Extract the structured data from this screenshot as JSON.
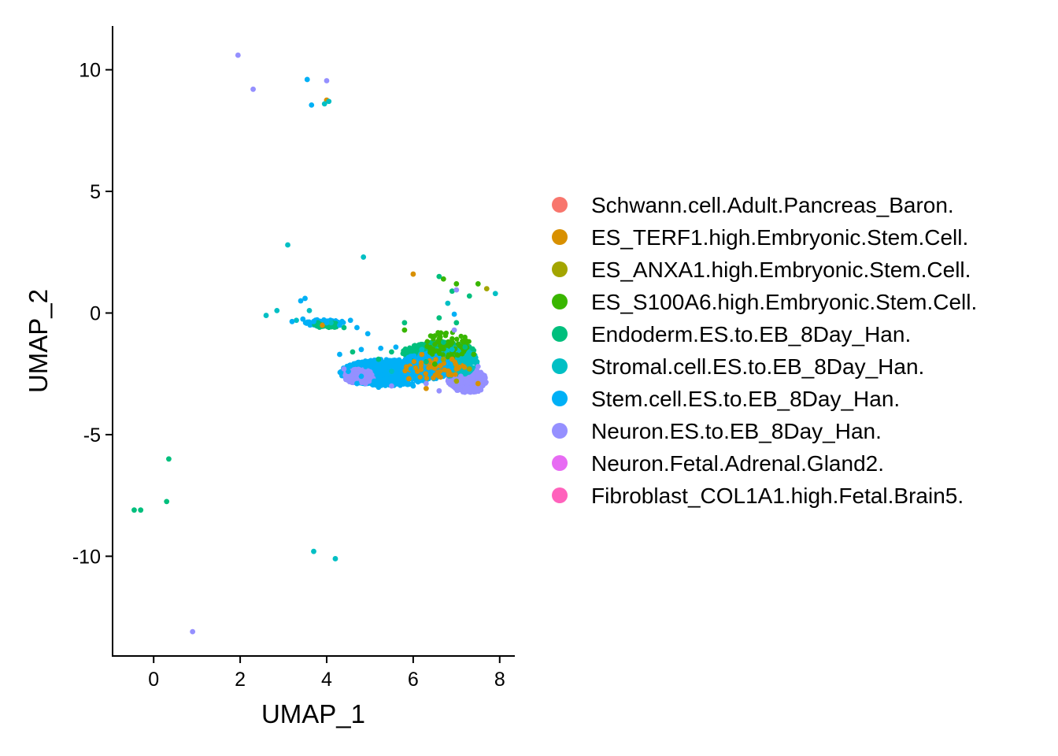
{
  "chart_data": {
    "type": "scatter",
    "title": "",
    "xlabel": "UMAP_1",
    "ylabel": "UMAP_2",
    "xlim": [
      -0.95,
      8.35
    ],
    "ylim": [
      -14.1,
      11.8
    ],
    "xticks": [
      0,
      2,
      4,
      6,
      8
    ],
    "xtick_labels": [
      "0",
      "2",
      "4",
      "6",
      "8"
    ],
    "yticks": [
      10,
      5,
      0,
      -5,
      -10
    ],
    "ytick_labels": [
      "10",
      "5",
      "0",
      "-5",
      "-10"
    ],
    "grid": false,
    "legend_position": "right",
    "series": [
      {
        "name": "Schwann.cell.Adult.Pancreas_Baron.",
        "color": "#F8766D",
        "points": []
      },
      {
        "name": "ES_TERF1.high.Embryonic.Stem.Cell.",
        "color": "#D89000",
        "points": [
          [
            6.0,
            1.6
          ],
          [
            4.0,
            8.75
          ],
          [
            3.9,
            -0.5
          ],
          [
            6.1,
            -2.4
          ],
          [
            6.4,
            -2.2
          ],
          [
            7.0,
            -2.3
          ],
          [
            6.3,
            -3.1
          ],
          [
            6.9,
            -1.9
          ],
          [
            5.9,
            -2.7
          ],
          [
            7.5,
            -2.9
          ],
          [
            6.6,
            -2.6
          ],
          [
            6.2,
            -1.7
          ]
        ]
      },
      {
        "name": "ES_ANXA1.high.Embryonic.Stem.Cell.",
        "color": "#A3A500",
        "points": [
          [
            7.7,
            1.0
          ],
          [
            7.3,
            -2.3
          ],
          [
            6.7,
            -1.9
          ],
          [
            7.0,
            -2.8
          ]
        ]
      },
      {
        "name": "ES_S100A6.high.Embryonic.Stem.Cell.",
        "color": "#39B600",
        "points": [
          [
            6.7,
            1.4
          ],
          [
            7.0,
            1.2
          ],
          [
            7.5,
            1.2
          ],
          [
            5.8,
            -0.7
          ],
          [
            6.9,
            -1.2
          ],
          [
            6.5,
            -2.1
          ],
          [
            7.4,
            -1.7
          ]
        ]
      },
      {
        "name": "Endoderm.ES.to.EB_8Day_Han.",
        "color": "#00BF7D",
        "points": [
          [
            0.35,
            -6.0
          ],
          [
            0.3,
            -7.75
          ],
          [
            -0.45,
            -8.1
          ],
          [
            -0.3,
            -8.1
          ],
          [
            6.6,
            1.5
          ],
          [
            6.9,
            0.9
          ],
          [
            7.3,
            0.7
          ],
          [
            5.8,
            -0.4
          ],
          [
            6.6,
            -0.2
          ],
          [
            3.8,
            -0.4
          ],
          [
            4.4,
            -0.6
          ],
          [
            5.5,
            -1.6
          ],
          [
            6.0,
            -1.5
          ],
          [
            6.7,
            -1.2
          ],
          [
            7.2,
            -1.4
          ],
          [
            6.3,
            -2.0
          ],
          [
            5.2,
            -1.9
          ],
          [
            4.6,
            -1.6
          ],
          [
            7.0,
            -0.4
          ]
        ]
      },
      {
        "name": "Stromal.cell.ES.to.EB_8Day_Han.",
        "color": "#00BFC4",
        "points": [
          [
            3.7,
            -9.8
          ],
          [
            4.2,
            -10.1
          ],
          [
            3.95,
            8.6
          ],
          [
            4.05,
            8.7
          ],
          [
            4.85,
            2.3
          ],
          [
            3.1,
            2.8
          ],
          [
            2.6,
            -0.1
          ],
          [
            2.85,
            0.1
          ],
          [
            3.3,
            -0.3
          ],
          [
            3.6,
            0.1
          ],
          [
            4.1,
            -0.4
          ],
          [
            6.9,
            -1.5
          ],
          [
            7.2,
            -2.0
          ],
          [
            6.2,
            -1.5
          ],
          [
            5.5,
            -2.4
          ],
          [
            6.8,
            0.4
          ],
          [
            7.9,
            0.8
          ]
        ]
      },
      {
        "name": "Stem.cell.ES.to.EB_8Day_Han.",
        "color": "#00B0F6",
        "points": [
          [
            3.55,
            9.6
          ],
          [
            3.65,
            8.55
          ],
          [
            3.4,
            0.5
          ],
          [
            3.5,
            0.6
          ],
          [
            3.2,
            -0.35
          ],
          [
            3.45,
            -0.25
          ],
          [
            3.7,
            -0.35
          ],
          [
            4.0,
            -0.4
          ],
          [
            4.3,
            -0.5
          ],
          [
            4.55,
            -0.3
          ],
          [
            4.7,
            -0.6
          ],
          [
            4.95,
            -0.85
          ],
          [
            4.8,
            -1.5
          ],
          [
            5.25,
            -1.45
          ],
          [
            5.6,
            -1.4
          ],
          [
            4.3,
            -1.7
          ],
          [
            6.95,
            -0.05
          ],
          [
            4.5,
            -2.4
          ],
          [
            4.8,
            -2.6
          ],
          [
            5.1,
            -2.8
          ],
          [
            5.4,
            -2.5
          ],
          [
            5.7,
            -2.9
          ],
          [
            6.0,
            -3.0
          ],
          [
            5.0,
            -2.1
          ],
          [
            5.3,
            -2.2
          ],
          [
            5.65,
            -2.0
          ],
          [
            5.95,
            -2.3
          ],
          [
            4.7,
            -2.9
          ],
          [
            5.2,
            -3.05
          ],
          [
            4.9,
            -2.2
          ]
        ]
      },
      {
        "name": "Neuron.ES.to.EB_8Day_Han.",
        "color": "#9590FF",
        "points": [
          [
            1.95,
            10.6
          ],
          [
            2.3,
            9.2
          ],
          [
            4.0,
            9.55
          ],
          [
            0.9,
            -13.1
          ],
          [
            7.0,
            0.95
          ],
          [
            6.95,
            -0.7
          ],
          [
            4.4,
            -2.3
          ],
          [
            4.6,
            -2.7
          ],
          [
            4.9,
            -2.9
          ],
          [
            5.5,
            -3.0
          ],
          [
            6.9,
            -2.9
          ],
          [
            7.2,
            -3.1
          ],
          [
            7.6,
            -2.6
          ],
          [
            7.4,
            -3.2
          ],
          [
            7.1,
            -2.6
          ],
          [
            7.5,
            -2.2
          ],
          [
            6.6,
            -3.2
          ],
          [
            4.7,
            -2.5
          ],
          [
            6.3,
            -2.9
          ]
        ]
      },
      {
        "name": "Neuron.Fetal.Adrenal.Gland2.",
        "color": "#E76BF3",
        "points": []
      },
      {
        "name": "Fibroblast_COL1A1.high.Fetal.Brain5.",
        "color": "#FF62BC",
        "points": []
      }
    ]
  }
}
